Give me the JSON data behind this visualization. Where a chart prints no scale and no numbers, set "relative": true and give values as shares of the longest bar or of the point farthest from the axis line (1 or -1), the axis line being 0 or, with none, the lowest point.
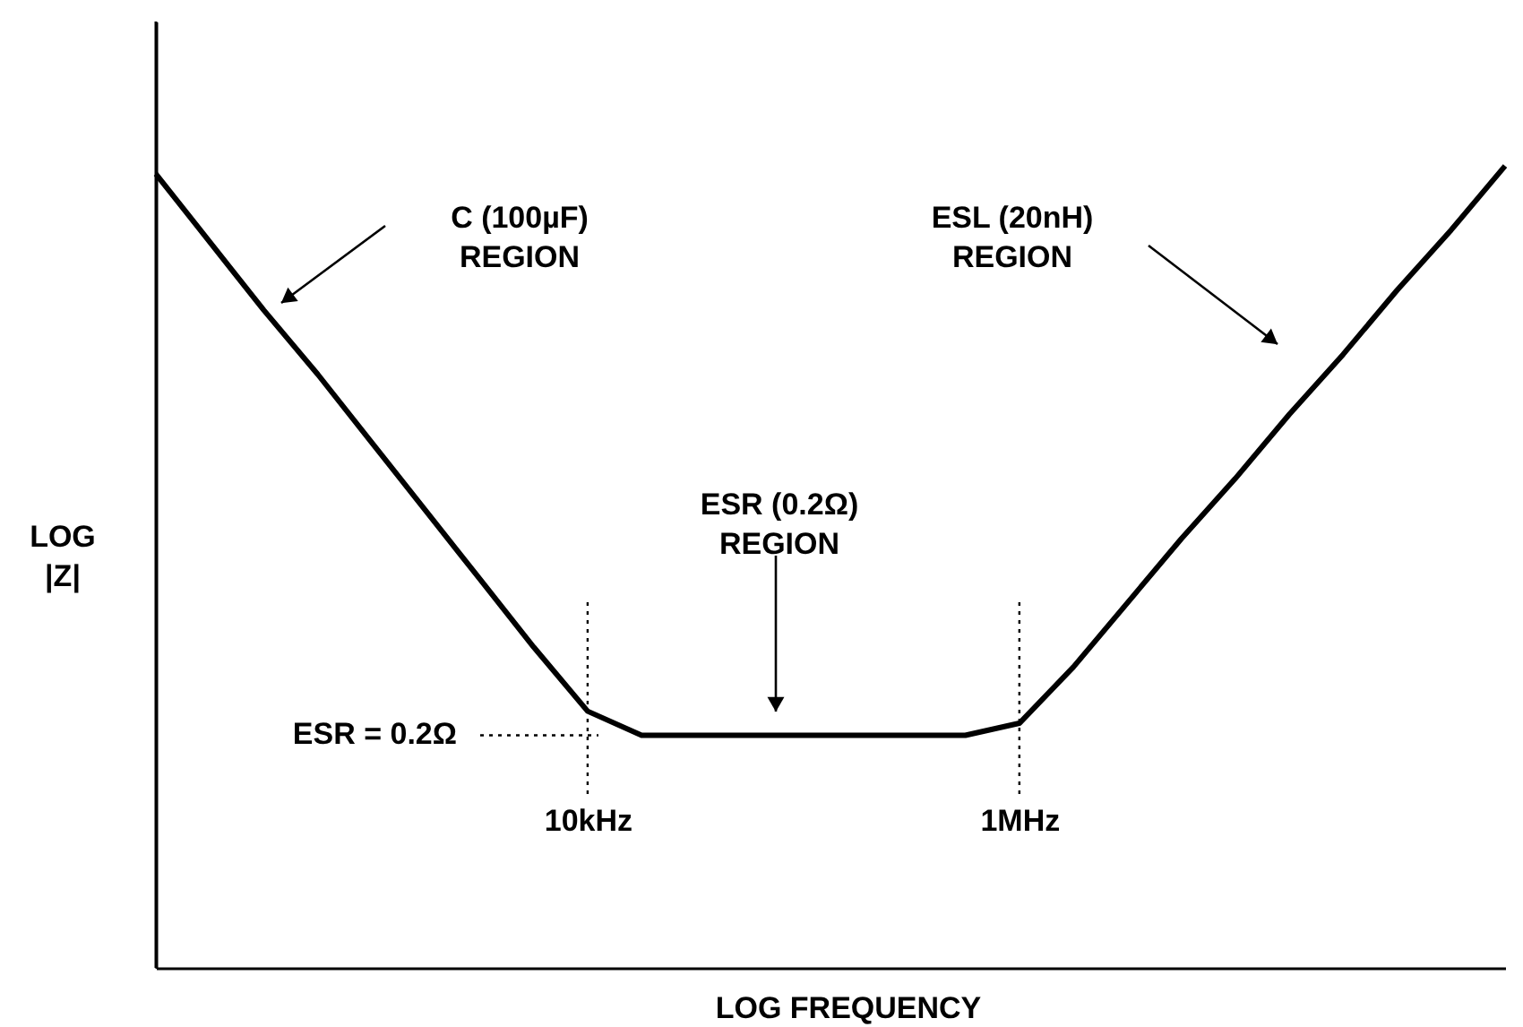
{
  "chart_data": {
    "type": "line",
    "relative": true,
    "tick_labels": "x",
    "marker": "none",
    "line_style": "solid",
    "xlabel": "LOG FREQUENCY",
    "ylabel": "LOG |Z|",
    "categories": [
      null,
      null,
      null,
      null,
      null,
      null,
      null,
      null,
      "10kHz",
      null,
      null,
      null,
      null,
      null,
      null,
      null,
      "1MHz",
      null,
      null,
      null,
      null,
      null,
      null,
      null,
      null,
      null
    ],
    "series": [
      {
        "color": "#000000",
        "values": [
          0.99,
          0.905,
          0.82,
          0.74,
          0.655,
          0.57,
          0.485,
          0.4,
          0.32,
          0.29,
          0.29,
          0.29,
          0.29,
          0.29,
          0.29,
          0.29,
          0.305,
          0.375,
          0.455,
          0.535,
          0.61,
          0.69,
          0.765,
          0.845,
          0.92,
          1.0
        ]
      }
    ],
    "ref_lines": [
      {
        "axis": "x",
        "value": "10kHz",
        "line_style": "dotted",
        "color": "#000000"
      },
      {
        "axis": "x",
        "value": "1MHz",
        "line_style": "dotted",
        "color": "#000000"
      },
      {
        "axis": "y",
        "value": 0.29,
        "line_style": "dotted",
        "color": "#000000"
      }
    ],
    "annotations": [
      "C (100µF)\nREGION",
      "ESL (20nH)\nREGION",
      "ESR (0.2Ω)\nREGION",
      "ESR = 0.2Ω"
    ]
  }
}
